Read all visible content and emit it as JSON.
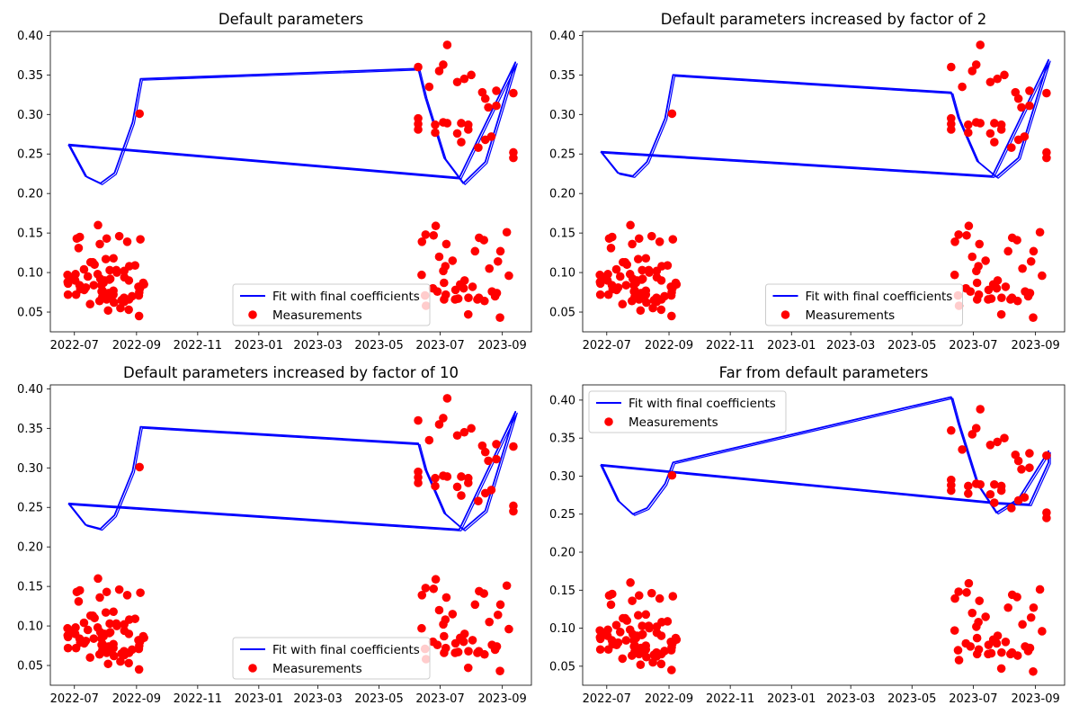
{
  "chart_data": [
    {
      "type": "scatter",
      "title": "Default parameters",
      "xlabel": "",
      "ylabel": "",
      "x_ticks": [
        "2022-07",
        "2022-09",
        "2022-11",
        "2023-01",
        "2023-03",
        "2023-05",
        "2023-07",
        "2023-09"
      ],
      "y_ticks": [
        "0.05",
        "0.10",
        "0.15",
        "0.20",
        "0.25",
        "0.30",
        "0.35",
        "0.40"
      ],
      "ylim": [
        0.025,
        0.405
      ],
      "legend_position": "lower center",
      "series": [
        {
          "name": "Fit with final coefficients",
          "type": "line",
          "color": "#0000ff",
          "x": [
            "2022-06-25",
            "2022-07-12",
            "2022-07-27",
            "2022-08-10",
            "2022-08-28",
            "2022-09-05",
            "2023-06-09",
            "2023-06-16",
            "2023-07-05",
            "2023-07-24",
            "2023-08-15",
            "2023-09-14",
            "2023-07-20",
            "2022-06-25"
          ],
          "y": [
            0.262,
            0.222,
            0.213,
            0.226,
            0.29,
            0.345,
            0.358,
            0.322,
            0.245,
            0.213,
            0.24,
            0.366,
            0.22,
            0.262
          ]
        },
        {
          "name": "Measurements",
          "type": "scatter",
          "color": "#ff0000",
          "upper_x": [
            "2022-09-04",
            "2023-06-09",
            "2023-06-09",
            "2023-06-09",
            "2023-06-09",
            "2023-06-20",
            "2023-06-26",
            "2023-06-26",
            "2023-06-30",
            "2023-07-04",
            "2023-07-04",
            "2023-07-08",
            "2023-07-08",
            "2023-07-18",
            "2023-07-18",
            "2023-07-22",
            "2023-07-22",
            "2023-07-25",
            "2023-07-29",
            "2023-07-29",
            "2023-08-01",
            "2023-08-08",
            "2023-08-12",
            "2023-08-15",
            "2023-08-15",
            "2023-08-18",
            "2023-08-21",
            "2023-08-26",
            "2023-08-26",
            "2023-09-12",
            "2023-09-12",
            "2023-09-12"
          ],
          "upper_y": [
            0.301,
            0.36,
            0.295,
            0.288,
            0.281,
            0.335,
            0.287,
            0.277,
            0.355,
            0.363,
            0.29,
            0.388,
            0.289,
            0.341,
            0.276,
            0.289,
            0.265,
            0.345,
            0.287,
            0.281,
            0.35,
            0.258,
            0.328,
            0.32,
            0.268,
            0.309,
            0.272,
            0.33,
            0.311,
            0.327,
            0.252,
            0.245
          ],
          "lower_period_1_x": [
            "2022-06-24",
            "2022-09-09"
          ],
          "lower_period_2_x": [
            "2023-06-09",
            "2023-09-12"
          ],
          "lower_y_range": [
            0.042,
            0.16
          ],
          "lower_y": [
            0.146,
            0.108,
            0.097,
            0.091,
            0.084,
            0.077,
            0.072,
            0.065,
            0.113,
            0.088,
            0.139,
            0.103,
            0.095,
            0.09,
            0.08,
            0.075,
            0.07,
            0.145,
            0.1,
            0.093,
            0.087,
            0.082,
            0.071,
            0.066,
            0.142,
            0.109,
            0.104,
            0.098,
            0.09,
            0.084,
            0.079,
            0.072,
            0.068,
            0.055,
            0.11,
            0.102,
            0.092,
            0.086,
            0.077,
            0.062,
            0.103,
            0.09,
            0.081,
            0.074,
            0.064,
            0.136,
            0.094,
            0.085,
            0.078,
            0.071,
            0.118,
            0.073,
            0.066,
            0.143,
            0.131,
            0.113,
            0.092,
            0.084,
            0.072,
            0.063,
            0.052,
            0.16,
            0.143,
            0.117,
            0.098,
            0.087,
            0.076,
            0.069,
            0.06,
            0.053,
            0.045,
            0.127,
            0.147,
            0.115,
            0.085,
            0.08,
            0.136,
            0.076,
            0.08,
            0.151,
            0.12,
            0.082,
            0.078,
            0.058,
            0.114,
            0.087,
            0.072,
            0.067,
            0.148,
            0.108,
            0.074,
            0.064,
            0.159,
            0.105,
            0.068,
            0.066,
            0.144,
            0.102,
            0.071,
            0.068,
            0.047,
            0.139,
            0.097,
            0.066,
            0.141,
            0.096,
            0.07,
            0.127,
            0.09,
            0.076,
            0.066,
            0.043
          ]
        }
      ]
    },
    {
      "type": "scatter",
      "title": "Default parameters increased by factor of 2",
      "xlabel": "",
      "ylabel": "",
      "x_ticks": [
        "2022-07",
        "2022-09",
        "2022-11",
        "2023-01",
        "2023-03",
        "2023-05",
        "2023-07",
        "2023-09"
      ],
      "y_ticks": [
        "0.05",
        "0.10",
        "0.15",
        "0.20",
        "0.25",
        "0.30",
        "0.35",
        "0.40"
      ],
      "ylim": [
        0.025,
        0.405
      ],
      "legend_position": "lower center",
      "series": [
        {
          "name": "Fit with final coefficients",
          "type": "line",
          "color": "#0000ff",
          "x": [
            "2022-06-25",
            "2022-07-12",
            "2022-07-27",
            "2022-08-10",
            "2022-08-28",
            "2022-09-05",
            "2023-06-09",
            "2023-06-16",
            "2023-07-05",
            "2023-07-24",
            "2023-08-15",
            "2023-09-14",
            "2023-07-20",
            "2022-06-25"
          ],
          "y": [
            0.253,
            0.226,
            0.222,
            0.24,
            0.295,
            0.35,
            0.328,
            0.296,
            0.241,
            0.221,
            0.245,
            0.369,
            0.222,
            0.253
          ]
        },
        {
          "name": "Measurements",
          "type": "scatter",
          "color": "#ff0000"
        }
      ]
    },
    {
      "type": "scatter",
      "title": "Default parameters increased by factor of 10",
      "xlabel": "",
      "ylabel": "",
      "x_ticks": [
        "2022-07",
        "2022-09",
        "2022-11",
        "2023-01",
        "2023-03",
        "2023-05",
        "2023-07",
        "2023-09"
      ],
      "y_ticks": [
        "0.05",
        "0.10",
        "0.15",
        "0.20",
        "0.25",
        "0.30",
        "0.35",
        "0.40"
      ],
      "ylim": [
        0.025,
        0.405
      ],
      "legend_position": "lower center",
      "series": [
        {
          "name": "Fit with final coefficients",
          "type": "line",
          "color": "#0000ff",
          "x": [
            "2022-06-25",
            "2022-07-12",
            "2022-07-27",
            "2022-08-10",
            "2022-08-28",
            "2022-09-05",
            "2023-06-09",
            "2023-06-16",
            "2023-07-05",
            "2023-07-24",
            "2023-08-15",
            "2023-09-14",
            "2023-07-20",
            "2022-06-25"
          ],
          "y": [
            0.255,
            0.228,
            0.223,
            0.24,
            0.296,
            0.352,
            0.331,
            0.298,
            0.243,
            0.222,
            0.246,
            0.371,
            0.222,
            0.255
          ]
        },
        {
          "name": "Measurements",
          "type": "scatter",
          "color": "#ff0000"
        }
      ]
    },
    {
      "type": "scatter",
      "title": "Far from default parameters",
      "xlabel": "",
      "ylabel": "",
      "x_ticks": [
        "2022-07",
        "2022-09",
        "2022-11",
        "2023-01",
        "2023-03",
        "2023-05",
        "2023-07",
        "2023-09"
      ],
      "y_ticks": [
        "0.05",
        "0.10",
        "0.15",
        "0.20",
        "0.25",
        "0.30",
        "0.35",
        "0.40"
      ],
      "ylim": [
        0.025,
        0.42
      ],
      "legend_position": "upper left",
      "series": [
        {
          "name": "Fit with final coefficients",
          "type": "line",
          "color": "#0000ff",
          "x": [
            "2022-06-25",
            "2022-07-12",
            "2022-07-27",
            "2022-08-10",
            "2022-08-28",
            "2022-09-05",
            "2023-06-09",
            "2023-06-16",
            "2023-07-05",
            "2023-07-24",
            "2023-08-15",
            "2023-09-14",
            "2023-09-14",
            "2023-08-26",
            "2023-07-25",
            "2022-06-25"
          ],
          "y": [
            0.315,
            0.268,
            0.25,
            0.258,
            0.29,
            0.318,
            0.404,
            0.37,
            0.29,
            0.252,
            0.27,
            0.333,
            0.318,
            0.263,
            0.265,
            0.315
          ]
        },
        {
          "name": "Measurements",
          "type": "scatter",
          "color": "#ff0000"
        }
      ]
    }
  ]
}
